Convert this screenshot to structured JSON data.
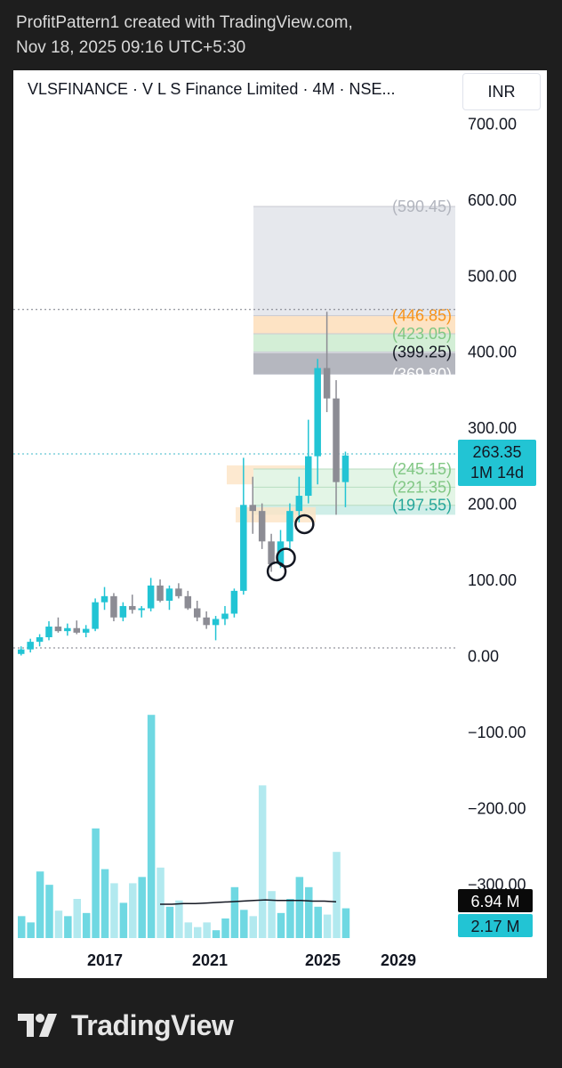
{
  "header": {
    "line1": "ProfitPattern1 created with TradingView.com,",
    "line2": "Nov 18, 2025 09:16 UTC+5:30"
  },
  "chart_title": "VLSFINANCE · V L S Finance Limited · 4M · NSE...",
  "currency": "INR",
  "brand": "TradingView",
  "colors": {
    "up": "#22c4d4",
    "down": "#8c8c94",
    "volume": "#6fd8e2",
    "volume_light": "#b2e9ef",
    "badge": "#22c4d4",
    "dotted": "#3cb8c8"
  },
  "chart_data": {
    "type": "candlestick",
    "timeframe": "4M",
    "y_axis": {
      "ticks": [
        "700.00",
        "600.00",
        "500.00",
        "400.00",
        "300.00",
        "200.00",
        "100.00",
        "0.00",
        "−100.00",
        "−200.00",
        "−300.00"
      ],
      "range": [
        -300,
        700
      ]
    },
    "x_axis": {
      "ticks": [
        "2017",
        "2021",
        "2025",
        "2029"
      ]
    },
    "candles": [
      {
        "o": 2,
        "h": 12,
        "l": 0,
        "c": 8
      },
      {
        "o": 8,
        "h": 22,
        "l": 4,
        "c": 18
      },
      {
        "o": 18,
        "h": 28,
        "l": 12,
        "c": 24
      },
      {
        "o": 24,
        "h": 45,
        "l": 20,
        "c": 38
      },
      {
        "o": 38,
        "h": 50,
        "l": 30,
        "c": 32
      },
      {
        "o": 32,
        "h": 42,
        "l": 26,
        "c": 36
      },
      {
        "o": 36,
        "h": 46,
        "l": 28,
        "c": 30
      },
      {
        "o": 30,
        "h": 40,
        "l": 24,
        "c": 35
      },
      {
        "o": 35,
        "h": 75,
        "l": 32,
        "c": 70
      },
      {
        "o": 70,
        "h": 90,
        "l": 60,
        "c": 78
      },
      {
        "o": 78,
        "h": 82,
        "l": 45,
        "c": 50
      },
      {
        "o": 50,
        "h": 70,
        "l": 45,
        "c": 65
      },
      {
        "o": 65,
        "h": 80,
        "l": 55,
        "c": 60
      },
      {
        "o": 60,
        "h": 65,
        "l": 50,
        "c": 62
      },
      {
        "o": 62,
        "h": 102,
        "l": 58,
        "c": 92
      },
      {
        "o": 92,
        "h": 100,
        "l": 70,
        "c": 72
      },
      {
        "o": 72,
        "h": 92,
        "l": 60,
        "c": 88
      },
      {
        "o": 88,
        "h": 95,
        "l": 75,
        "c": 78
      },
      {
        "o": 78,
        "h": 85,
        "l": 60,
        "c": 62
      },
      {
        "o": 62,
        "h": 72,
        "l": 45,
        "c": 50
      },
      {
        "o": 50,
        "h": 58,
        "l": 35,
        "c": 40
      },
      {
        "o": 40,
        "h": 52,
        "l": 20,
        "c": 48
      },
      {
        "o": 48,
        "h": 65,
        "l": 40,
        "c": 55
      },
      {
        "o": 55,
        "h": 88,
        "l": 50,
        "c": 85
      },
      {
        "o": 85,
        "h": 260,
        "l": 80,
        "c": 198
      },
      {
        "o": 198,
        "h": 235,
        "l": 160,
        "c": 190
      },
      {
        "o": 190,
        "h": 200,
        "l": 140,
        "c": 150
      },
      {
        "o": 150,
        "h": 160,
        "l": 110,
        "c": 120
      },
      {
        "o": 120,
        "h": 165,
        "l": 115,
        "c": 150
      },
      {
        "o": 150,
        "h": 200,
        "l": 140,
        "c": 190
      },
      {
        "o": 190,
        "h": 235,
        "l": 175,
        "c": 210
      },
      {
        "o": 210,
        "h": 310,
        "l": 200,
        "c": 262
      },
      {
        "o": 262,
        "h": 390,
        "l": 225,
        "c": 378
      },
      {
        "o": 378,
        "h": 452,
        "l": 320,
        "c": 338
      },
      {
        "o": 338,
        "h": 362,
        "l": 185,
        "c": 228
      },
      {
        "o": 228,
        "h": 268,
        "l": 195,
        "c": 263
      }
    ],
    "volume": [
      28,
      20,
      85,
      68,
      35,
      28,
      50,
      32,
      140,
      88,
      70,
      45,
      70,
      78,
      285,
      90,
      40,
      48,
      20,
      14,
      20,
      10,
      25,
      65,
      36,
      28,
      195,
      60,
      32,
      50,
      78,
      65,
      40,
      30,
      110,
      38
    ],
    "volume_average": [
      11,
      11,
      12,
      12,
      13,
      14,
      15,
      16,
      17,
      18,
      17,
      17,
      17,
      16,
      16,
      15
    ],
    "fib_upper": {
      "levels": [
        {
          "label": "(590.45)",
          "value": 590.45,
          "color": "#b2b5be"
        },
        {
          "label": "(446.85)",
          "value": 446.85,
          "color": "#f7931a"
        },
        {
          "label": "(423.05)",
          "value": 423.05,
          "color": "#81c784"
        },
        {
          "label": "(399.25)",
          "value": 399.25,
          "color": "#131722"
        },
        {
          "label": "(369.80)",
          "value": 369.8,
          "color": "#ffffff"
        }
      ]
    },
    "fib_lower": {
      "levels": [
        {
          "label": "(245.15)",
          "value": 245.15,
          "color": "#81c784"
        },
        {
          "label": "(221.35)",
          "value": 221.35,
          "color": "#81c784"
        },
        {
          "label": "(197.55)",
          "value": 197.55,
          "color": "#26a69a"
        }
      ]
    },
    "horizontal_lines": [
      {
        "value": 455,
        "color": "#787b86"
      },
      {
        "value": 265,
        "color": "#3cb8c8"
      },
      {
        "value": 10,
        "color": "#787b86"
      }
    ],
    "last_price": {
      "value": "263.35",
      "countdown": "1M 14d"
    },
    "volume_badges": {
      "total": "6.94 M",
      "average": "2.17 M"
    },
    "markers": [
      {
        "candle": 27,
        "price": 120
      },
      {
        "candle": 28,
        "price": 138
      },
      {
        "candle": 30,
        "price": 182
      }
    ]
  }
}
